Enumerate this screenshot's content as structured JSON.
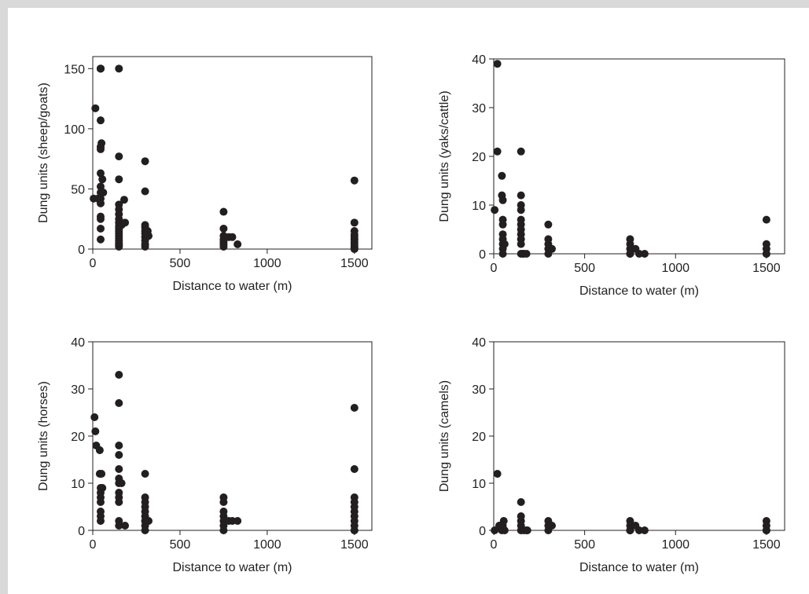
{
  "figure": {
    "x_axis_label": "Distance to water (m)",
    "point_color": "#231f20",
    "axis_color": "#231f20"
  },
  "chart_data": [
    {
      "type": "scatter",
      "title": "",
      "xlabel": "Distance to water (m)",
      "ylabel": "Dung units (sheep/goats)",
      "xlim": [
        0,
        1600
      ],
      "ylim": [
        0,
        160
      ],
      "xticks": [
        0,
        500,
        1000,
        1500
      ],
      "yticks": [
        0,
        50,
        100,
        150
      ],
      "grid": false,
      "x": [
        5,
        15,
        30,
        45,
        45,
        45,
        45,
        45,
        45,
        45,
        45,
        45,
        45,
        45,
        45,
        45,
        45,
        45,
        50,
        55,
        60,
        150,
        150,
        150,
        150,
        150,
        150,
        150,
        150,
        150,
        150,
        150,
        150,
        150,
        150,
        150,
        150,
        150,
        150,
        150,
        165,
        180,
        185,
        300,
        300,
        300,
        300,
        300,
        300,
        300,
        300,
        300,
        300,
        315,
        320,
        750,
        750,
        750,
        750,
        750,
        750,
        750,
        780,
        800,
        830,
        1500,
        1500,
        1500,
        1500,
        1500,
        1500,
        1500,
        1500,
        1500,
        1500,
        1500
      ],
      "y": [
        42,
        117,
        42,
        150,
        150,
        107,
        85,
        83,
        63,
        52,
        47,
        42,
        38,
        27,
        25,
        17,
        8,
        150,
        88,
        58,
        47,
        150,
        77,
        58,
        37,
        33,
        29,
        25,
        22,
        19,
        17,
        15,
        13,
        11,
        9,
        7,
        5,
        4,
        3,
        2,
        20,
        41,
        22,
        73,
        48,
        20,
        18,
        15,
        13,
        10,
        7,
        4,
        2,
        15,
        11,
        31,
        17,
        11,
        8,
        6,
        4,
        2,
        10,
        10,
        4,
        57,
        22,
        15,
        12,
        10,
        8,
        6,
        4,
        2,
        1,
        0
      ]
    },
    {
      "type": "scatter",
      "title": "",
      "xlabel": "Distance to water (m)",
      "ylabel": "Dung units (yaks/cattle)",
      "xlim": [
        0,
        1600
      ],
      "ylim": [
        0,
        40
      ],
      "xticks": [
        0,
        500,
        1000,
        1500
      ],
      "yticks": [
        0,
        10,
        20,
        30,
        40
      ],
      "grid": false,
      "x": [
        5,
        20,
        20,
        45,
        45,
        50,
        50,
        50,
        50,
        50,
        50,
        50,
        50,
        60,
        150,
        150,
        150,
        150,
        150,
        150,
        150,
        150,
        150,
        150,
        150,
        160,
        165,
        180,
        300,
        300,
        300,
        300,
        300,
        315,
        320,
        750,
        750,
        750,
        750,
        750,
        780,
        800,
        830,
        1500,
        1500,
        1500,
        1500,
        1500
      ],
      "y": [
        9,
        39,
        21,
        16,
        12,
        11,
        7,
        6,
        4,
        3,
        2,
        1,
        0,
        2,
        21,
        12,
        10,
        9,
        7,
        6,
        5,
        4,
        3,
        2,
        0,
        0,
        0,
        0,
        6,
        3,
        2,
        1,
        0,
        1,
        1,
        3,
        2,
        1,
        0,
        0,
        1,
        0,
        0,
        7,
        2,
        1,
        0,
        0
      ]
    },
    {
      "type": "scatter",
      "title": "",
      "xlabel": "Distance to water (m)",
      "ylabel": "Dung units (horses)",
      "xlim": [
        0,
        1600
      ],
      "ylim": [
        0,
        40
      ],
      "xticks": [
        0,
        500,
        1000,
        1500
      ],
      "yticks": [
        0,
        10,
        20,
        30,
        40
      ],
      "grid": false,
      "x": [
        10,
        15,
        20,
        40,
        40,
        45,
        45,
        45,
        45,
        45,
        45,
        45,
        50,
        55,
        150,
        150,
        150,
        150,
        150,
        150,
        150,
        150,
        150,
        150,
        150,
        150,
        165,
        185,
        300,
        300,
        300,
        300,
        300,
        300,
        300,
        300,
        300,
        300,
        315,
        320,
        750,
        750,
        750,
        750,
        750,
        750,
        750,
        780,
        800,
        830,
        1500,
        1500,
        1500,
        1500,
        1500,
        1500,
        1500,
        1500,
        1500,
        1500,
        1500
      ],
      "y": [
        24,
        21,
        18,
        17,
        12,
        9,
        8,
        7,
        6,
        4,
        3,
        2,
        12,
        9,
        33,
        27,
        18,
        16,
        13,
        11,
        10,
        8,
        7,
        6,
        2,
        1,
        10,
        1,
        12,
        7,
        6,
        5,
        4,
        3,
        2,
        1,
        0,
        2,
        2,
        2,
        7,
        6,
        4,
        3,
        2,
        1,
        0,
        2,
        2,
        2,
        26,
        13,
        7,
        6,
        5,
        4,
        3,
        2,
        1,
        0,
        0
      ]
    },
    {
      "type": "scatter",
      "title": "",
      "xlabel": "Distance to water (m)",
      "ylabel": "Dung units (camels)",
      "xlim": [
        0,
        1600
      ],
      "ylim": [
        0,
        40
      ],
      "xticks": [
        0,
        500,
        1000,
        1500
      ],
      "yticks": [
        0,
        10,
        20,
        30,
        40
      ],
      "grid": false,
      "x": [
        5,
        20,
        30,
        45,
        50,
        55,
        60,
        150,
        150,
        150,
        150,
        150,
        165,
        180,
        185,
        300,
        300,
        300,
        320,
        750,
        750,
        750,
        750,
        750,
        780,
        800,
        830,
        1500,
        1500,
        1500,
        1500,
        1500
      ],
      "y": [
        0,
        12,
        1,
        0,
        1,
        2,
        0,
        6,
        3,
        2,
        1,
        0,
        0,
        0,
        0,
        2,
        1,
        0,
        1,
        2,
        1,
        0,
        0,
        0,
        1,
        0,
        0,
        2,
        1,
        0,
        0,
        0
      ]
    }
  ]
}
